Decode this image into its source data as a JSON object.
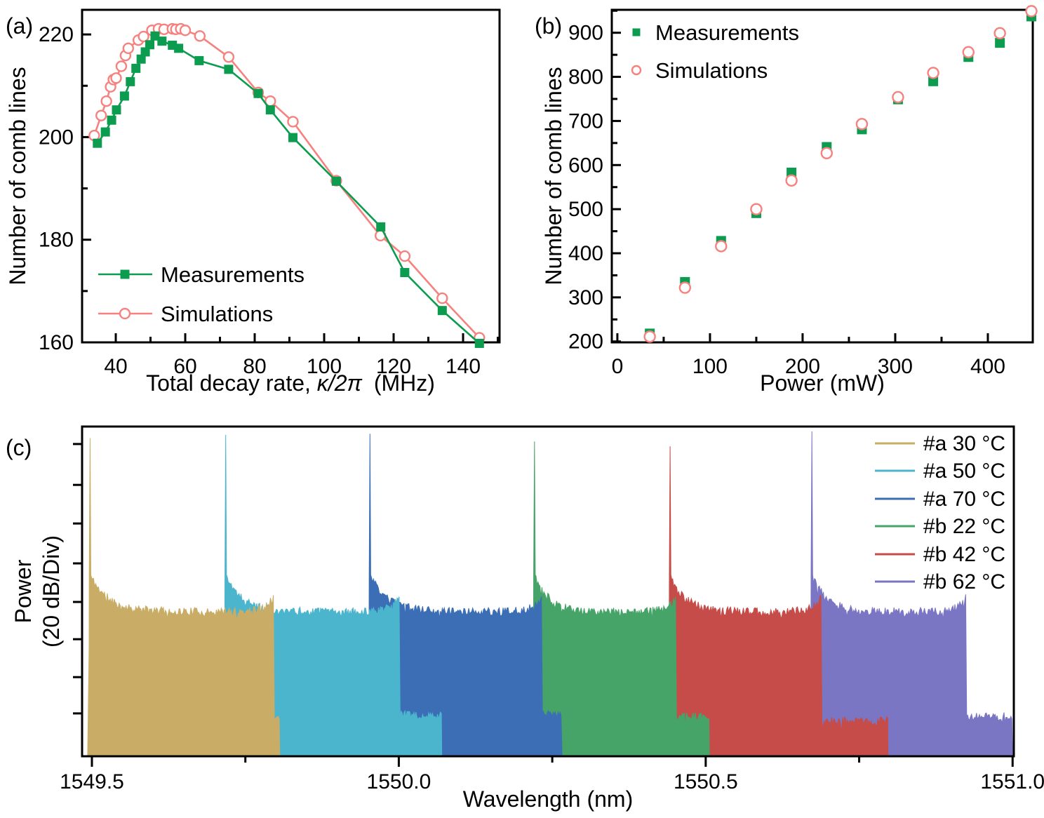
{
  "figure": {
    "background": "#ffffff",
    "panels": [
      {
        "label": "(a)"
      },
      {
        "label": "(b)"
      },
      {
        "label": "(c)"
      }
    ]
  },
  "colors": {
    "measurements_green": "#0c9c4f",
    "simulations_pink": "#f5827e",
    "axis_black": "#000000",
    "spectrum_tan": "#c9ad67",
    "spectrum_cyan": "#4cb5ce",
    "spectrum_blue": "#3b6eb5",
    "spectrum_green": "#47a468",
    "spectrum_red": "#c64c49",
    "spectrum_purple": "#7b76c4"
  },
  "chart_data": [
    {
      "id": "panel-a",
      "type": "line",
      "title": "",
      "xlabel_prefix": "Total decay rate, ",
      "xlabel_symbol": "κ/2π",
      "xlabel_suffix": " (MHz)",
      "ylabel": "Number of comb lines",
      "xlim": [
        30.3,
        150.5
      ],
      "ylim": [
        160,
        224.8
      ],
      "x_ticks": [
        40,
        60,
        80,
        100,
        120,
        140
      ],
      "x_minor_ticks": [
        50,
        70,
        90,
        110,
        130,
        150
      ],
      "y_ticks": [
        160,
        180,
        200,
        220
      ],
      "y_minor_ticks": [
        170,
        190,
        210
      ],
      "grid": false,
      "legend_position": "lower-left",
      "series": [
        {
          "name": "Measurements",
          "marker": "filled-square",
          "color": "#0c9c4f",
          "line": true,
          "points": [
            [
              34.7,
              198.8
            ],
            [
              37.0,
              201.0
            ],
            [
              38.8,
              203.3
            ],
            [
              40.2,
              205.3
            ],
            [
              42.5,
              208.0
            ],
            [
              44.2,
              210.8
            ],
            [
              45.8,
              213.4
            ],
            [
              47.3,
              215.2
            ],
            [
              48.5,
              216.6
            ],
            [
              49.8,
              218.0
            ],
            [
              51.3,
              219.7
            ],
            [
              53.3,
              218.7
            ],
            [
              56.3,
              217.9
            ],
            [
              58.1,
              217.3
            ],
            [
              64.0,
              214.9
            ],
            [
              72.5,
              213.2
            ],
            [
              81.0,
              208.5
            ],
            [
              84.5,
              205.3
            ],
            [
              91.0,
              199.9
            ],
            [
              103.5,
              191.4
            ],
            [
              116.3,
              182.5
            ],
            [
              123.2,
              173.6
            ],
            [
              134.0,
              166.2
            ],
            [
              144.7,
              159.8
            ]
          ]
        },
        {
          "name": "Simulations",
          "marker": "open-circle",
          "color": "#f5827e",
          "line": true,
          "points": [
            [
              33.8,
              200.3
            ],
            [
              35.8,
              204.2
            ],
            [
              37.3,
              207.0
            ],
            [
              38.5,
              209.8
            ],
            [
              39.3,
              211.2
            ],
            [
              40.1,
              211.5
            ],
            [
              41.6,
              213.8
            ],
            [
              42.8,
              215.9
            ],
            [
              43.6,
              217.3
            ],
            [
              46.5,
              218.9
            ],
            [
              48.0,
              219.6
            ],
            [
              50.4,
              220.8
            ],
            [
              52.3,
              221.1
            ],
            [
              53.9,
              221.0
            ],
            [
              56.3,
              221.1
            ],
            [
              57.3,
              221.0
            ],
            [
              58.7,
              221.1
            ],
            [
              60.0,
              220.8
            ],
            [
              64.2,
              219.7
            ],
            [
              72.5,
              215.6
            ],
            [
              81.0,
              208.7
            ],
            [
              84.5,
              207.0
            ],
            [
              91.0,
              203.0
            ],
            [
              103.5,
              191.5
            ],
            [
              116.2,
              180.8
            ],
            [
              123.2,
              176.8
            ],
            [
              134.0,
              168.6
            ],
            [
              144.7,
              160.9
            ]
          ]
        }
      ]
    },
    {
      "id": "panel-b",
      "type": "scatter",
      "title": "",
      "xlabel": "Power (mW)",
      "ylabel": "Number of comb lines",
      "xlim": [
        -6,
        448.5
      ],
      "ylim": [
        198,
        952
      ],
      "x_ticks": [
        0,
        100,
        200,
        300,
        400
      ],
      "x_minor_ticks": [
        50,
        150,
        250,
        350
      ],
      "y_ticks": [
        200,
        300,
        400,
        500,
        600,
        700,
        800,
        900
      ],
      "y_minor_ticks": [
        250,
        350,
        450,
        550,
        650,
        750,
        850,
        950
      ],
      "grid": false,
      "legend_position": "upper-left",
      "series": [
        {
          "name": "Measurements",
          "marker": "filled-square",
          "color": "#0c9c4f",
          "line": false,
          "points": [
            [
              35,
              218
            ],
            [
              73,
              335
            ],
            [
              112,
              428
            ],
            [
              150,
              491
            ],
            [
              188,
              583
            ],
            [
              226,
              641
            ],
            [
              264,
              681
            ],
            [
              303,
              749
            ],
            [
              341,
              790
            ],
            [
              379,
              845
            ],
            [
              413,
              877
            ],
            [
              447,
              937
            ]
          ]
        },
        {
          "name": "Simulations",
          "marker": "open-circle",
          "color": "#f5827e",
          "line": false,
          "points": [
            [
              35,
              211
            ],
            [
              73,
              322
            ],
            [
              112,
              416
            ],
            [
              150,
              500
            ],
            [
              188,
              565
            ],
            [
              226,
              627
            ],
            [
              264,
              693
            ],
            [
              303,
              754
            ],
            [
              341,
              809
            ],
            [
              379,
              856
            ],
            [
              413,
              899
            ],
            [
              447,
              949
            ]
          ]
        }
      ]
    },
    {
      "id": "panel-c",
      "type": "area",
      "title": "",
      "xlabel": "Wavelength (nm)",
      "ylabel_line1": "Power",
      "ylabel_line2": "(20 dB/Div)",
      "y_axis_note": "8 unlabeled divisions, 20 dB per division",
      "xlim": [
        1549.484,
        1551.002
      ],
      "x_ticks": [
        1549.5,
        1550.0,
        1550.5,
        1551.0
      ],
      "x_tick_labels": [
        "1549.5",
        "1550.0",
        "1550.5",
        "1551.0"
      ],
      "x_minor_ticks": [
        1549.75,
        1550.25,
        1550.75
      ],
      "grid": false,
      "legend_position": "upper-right",
      "series": [
        {
          "name": "#a 30 °C",
          "color": "#c9ad67",
          "pump_nm": 1549.497,
          "plateau_end_nm": 1549.796,
          "shelf_end_nm": 1549.806,
          "peak_height_frac": 0.965,
          "shelf_frac": 0.115,
          "seed": 11
        },
        {
          "name": "#a 50 °C",
          "color": "#4cb5ce",
          "pump_nm": 1549.718,
          "plateau_end_nm": 1550.002,
          "shelf_end_nm": 1550.07,
          "peak_height_frac": 0.975,
          "shelf_frac": 0.125,
          "seed": 22
        },
        {
          "name": "#a 70 °C",
          "color": "#3b6eb5",
          "pump_nm": 1549.953,
          "plateau_end_nm": 1550.234,
          "shelf_end_nm": 1550.266,
          "peak_height_frac": 0.978,
          "shelf_frac": 0.128,
          "seed": 33
        },
        {
          "name": "#b 22 °C",
          "color": "#47a468",
          "pump_nm": 1550.221,
          "plateau_end_nm": 1550.451,
          "shelf_end_nm": 1550.506,
          "peak_height_frac": 0.955,
          "shelf_frac": 0.12,
          "seed": 44
        },
        {
          "name": "#b 42 °C",
          "color": "#c64c49",
          "pump_nm": 1550.442,
          "plateau_end_nm": 1550.688,
          "shelf_end_nm": 1550.797,
          "peak_height_frac": 0.94,
          "shelf_frac": 0.107,
          "seed": 55
        },
        {
          "name": "#b 62 °C",
          "color": "#7b76c4",
          "pump_nm": 1550.673,
          "plateau_end_nm": 1550.924,
          "shelf_end_nm": 1551.0,
          "peak_height_frac": 0.985,
          "shelf_frac": 0.122,
          "seed": 66
        }
      ]
    }
  ]
}
